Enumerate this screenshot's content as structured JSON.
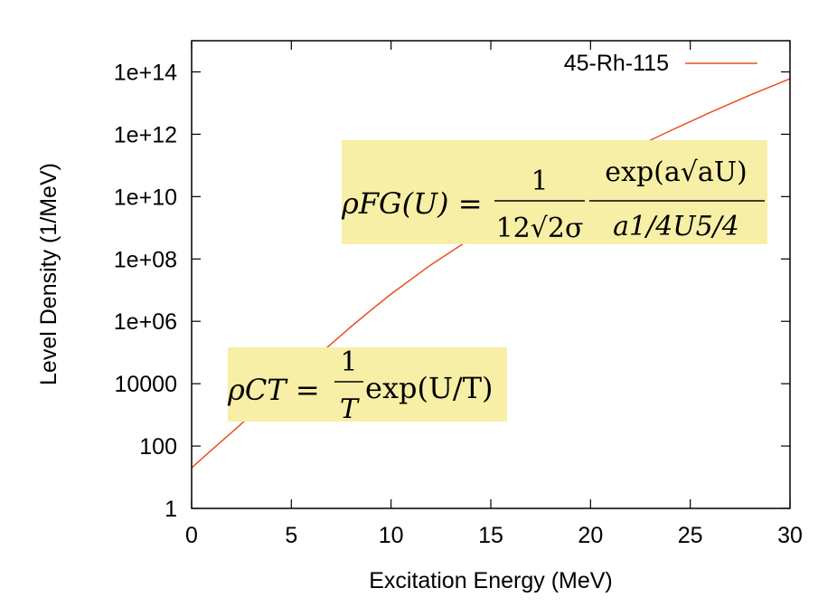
{
  "chart_data": {
    "type": "line",
    "xlabel": "Excitation Energy (MeV)",
    "ylabel": "Level Density (1/MeV)",
    "yscale": "log",
    "xlim": [
      0,
      30
    ],
    "ylim": [
      1,
      1000000000000000.0
    ],
    "xticks": [
      0,
      5,
      10,
      15,
      20,
      25,
      30
    ],
    "xtick_labels": [
      "0",
      "5",
      "10",
      "15",
      "20",
      "25",
      "30"
    ],
    "yticks": [
      1,
      100,
      10000,
      1000000.0,
      100000000.0,
      10000000000.0,
      1000000000000.0,
      100000000000000.0
    ],
    "ytick_labels": [
      "1",
      "100",
      "10000",
      "1e+06",
      "1e+08",
      "1e+10",
      "1e+12",
      "1e+14"
    ],
    "grid": false,
    "legend_position": "top-right",
    "series": [
      {
        "name": "45-Rh-115",
        "color": "#e8501e",
        "x": [
          0,
          1,
          2,
          3,
          4,
          5,
          6,
          7,
          8,
          9,
          10,
          12,
          14,
          16,
          18,
          20,
          22,
          24,
          26,
          28,
          30
        ],
        "y": [
          20,
          75,
          270,
          1000,
          3800,
          14000,
          52000,
          190000,
          680000,
          2300000,
          7500000,
          65000000.0,
          450000000.0,
          2800000000.0,
          15000000000.0,
          72000000000.0,
          320000000000.0,
          1300000000000.0,
          5000000000000.0,
          18000000000000.0,
          60000000000000.0
        ]
      }
    ],
    "annotations": [
      {
        "id": "fermi-gas",
        "lhs": "ρFG(U) =",
        "fraction1_num": "1",
        "fraction1_den": "12√2σ",
        "fraction2_num": "exp(a√aU)",
        "fraction2_den": "a1/4U5/4",
        "background": "#f8efa7"
      },
      {
        "id": "constant-temperature",
        "lhs": "ρCT =",
        "fraction_num": "1",
        "fraction_den": "T",
        "rhs": "exp(U/T)",
        "background": "#f8efa7"
      }
    ]
  }
}
